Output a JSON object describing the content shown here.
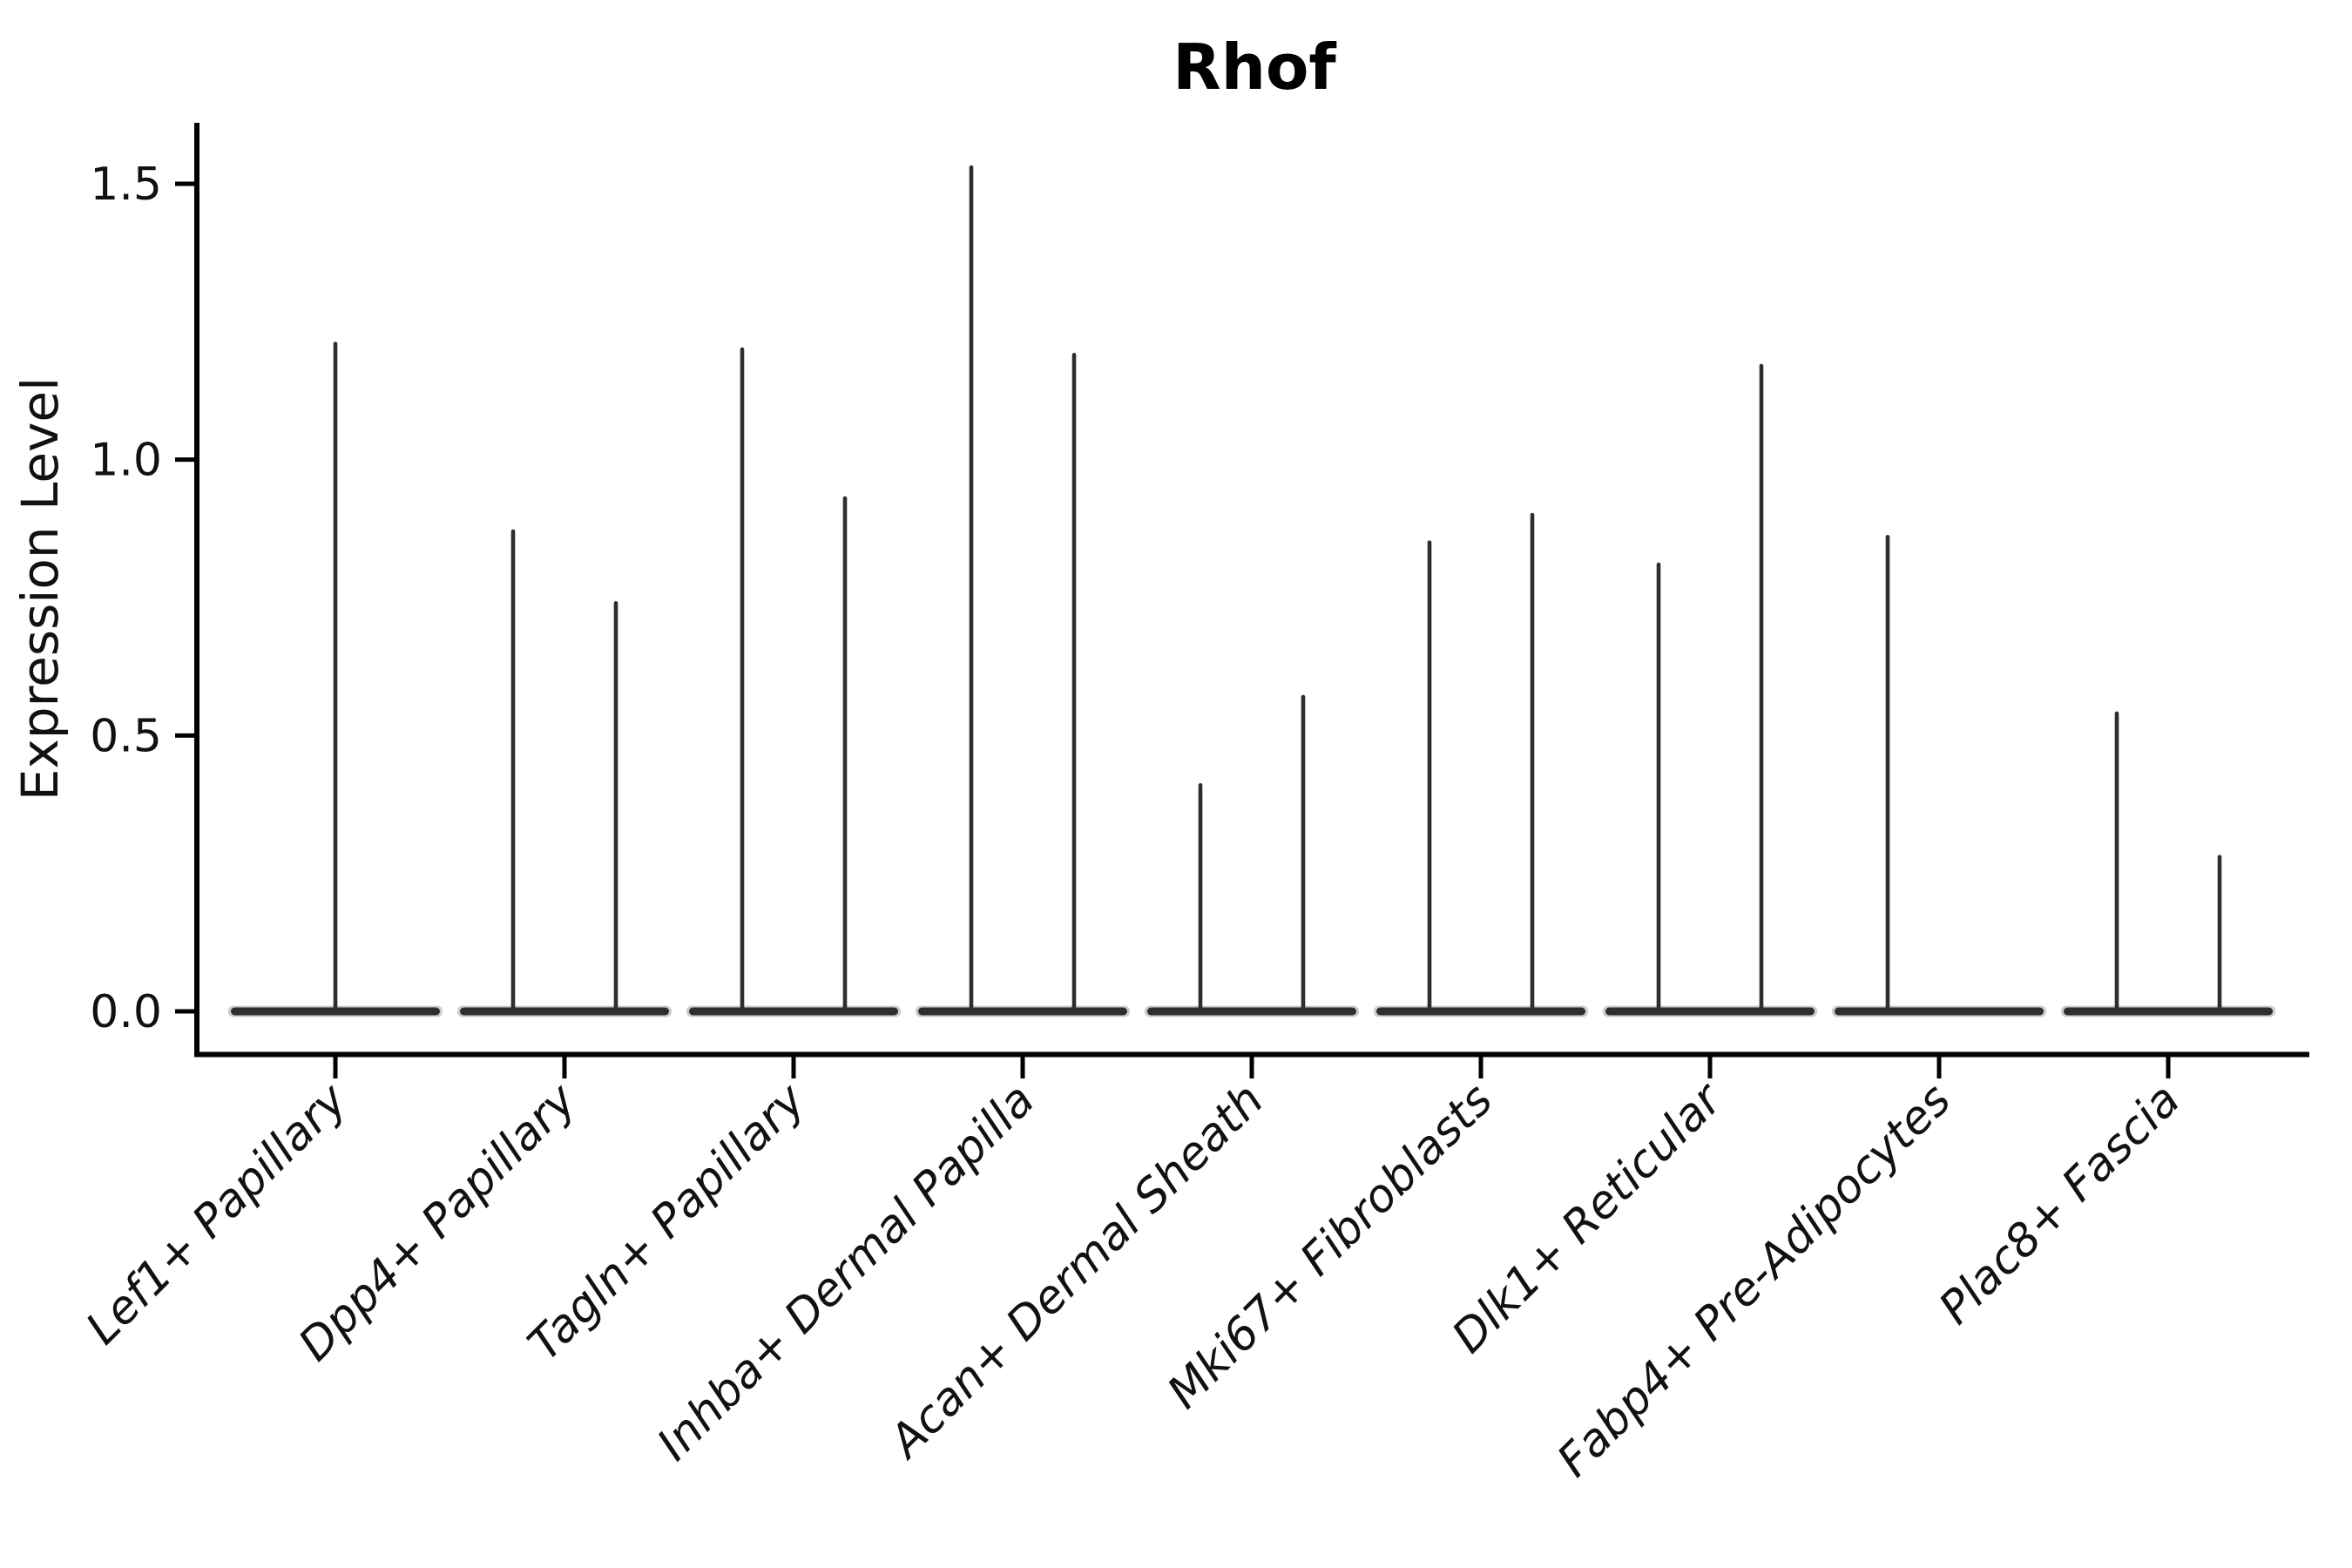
{
  "title": "Rhof",
  "chart_data": {
    "type": "violin",
    "title": "Rhof",
    "xlabel": "",
    "ylabel": "Expression Level",
    "ylim": [
      0,
      1.61
    ],
    "grid": false,
    "legend": "none",
    "style_note": "per-category thin violin spikes rising from a flat dense base at 0",
    "colors": {
      "violin": "#2e2e2e",
      "violin_halo": "#9a9a9a",
      "axis": "#000000",
      "text": "#111111"
    },
    "y_axis": {
      "ticks": [
        {
          "label": "1.5",
          "value": 1.5
        },
        {
          "label": "1.0",
          "value": 1.0
        },
        {
          "label": "0.5",
          "value": 0.5
        },
        {
          "label": "0.0",
          "value": 0.0
        }
      ]
    },
    "categories": [
      {
        "label": "Lef1+ Papillary",
        "violins": [
          {
            "pos": "center",
            "max": 1.21
          }
        ]
      },
      {
        "label": "Dpp4+ Papillary",
        "violins": [
          {
            "pos": "left",
            "max": 0.87
          },
          {
            "pos": "right",
            "max": 0.74
          }
        ]
      },
      {
        "label": "Tagln+ Papillary",
        "violins": [
          {
            "pos": "left",
            "max": 1.2
          },
          {
            "pos": "right",
            "max": 0.93
          }
        ]
      },
      {
        "label": "Inhba+ Dermal Papilla",
        "violins": [
          {
            "pos": "left",
            "max": 1.53
          },
          {
            "pos": "right",
            "max": 1.19
          }
        ]
      },
      {
        "label": "Acan+ Dermal Sheath",
        "violins": [
          {
            "pos": "left",
            "max": 0.41
          },
          {
            "pos": "right",
            "max": 0.57
          }
        ]
      },
      {
        "label": "Mki67+ Fibroblasts",
        "violins": [
          {
            "pos": "left",
            "max": 0.85
          },
          {
            "pos": "right",
            "max": 0.9
          }
        ]
      },
      {
        "label": "Dlk1+ Reticular",
        "violins": [
          {
            "pos": "left",
            "max": 0.81
          },
          {
            "pos": "right",
            "max": 1.17
          }
        ]
      },
      {
        "label": "Fabp4+ Pre-Adipocytes",
        "violins": [
          {
            "pos": "left",
            "max": 0.86
          }
        ]
      },
      {
        "label": "Plac8+ Fascia",
        "violins": [
          {
            "pos": "left",
            "max": 0.54
          },
          {
            "pos": "right",
            "max": 0.28
          }
        ]
      }
    ]
  }
}
